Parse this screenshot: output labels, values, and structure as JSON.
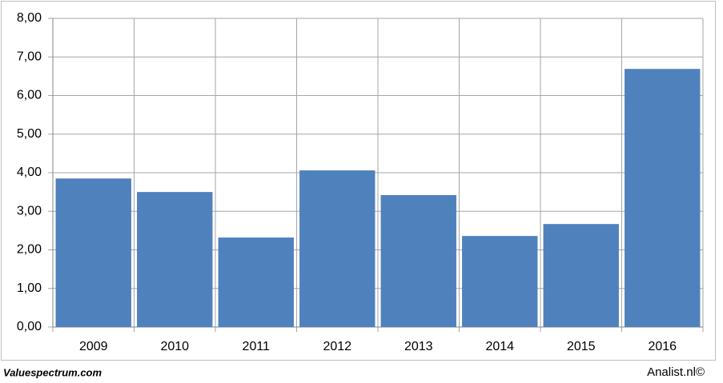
{
  "chart_data": {
    "type": "bar",
    "categories": [
      "2009",
      "2010",
      "2011",
      "2012",
      "2013",
      "2014",
      "2015",
      "2016"
    ],
    "values": [
      3.85,
      3.5,
      2.32,
      4.06,
      3.42,
      2.36,
      2.67,
      6.69
    ],
    "color": "#4f81bd",
    "ylim": [
      0,
      8
    ],
    "yticks": [
      {
        "value": 0,
        "label": "0,00"
      },
      {
        "value": 1,
        "label": "1,00"
      },
      {
        "value": 2,
        "label": "2,00"
      },
      {
        "value": 3,
        "label": "3,00"
      },
      {
        "value": 4,
        "label": "4,00"
      },
      {
        "value": 5,
        "label": "5,00"
      },
      {
        "value": 6,
        "label": "6,00"
      },
      {
        "value": 7,
        "label": "7,00"
      },
      {
        "value": 8,
        "label": "8,00"
      }
    ],
    "grid": true
  },
  "footer": {
    "left": "Valuespectrum.com",
    "right": "Analist.nl©"
  }
}
